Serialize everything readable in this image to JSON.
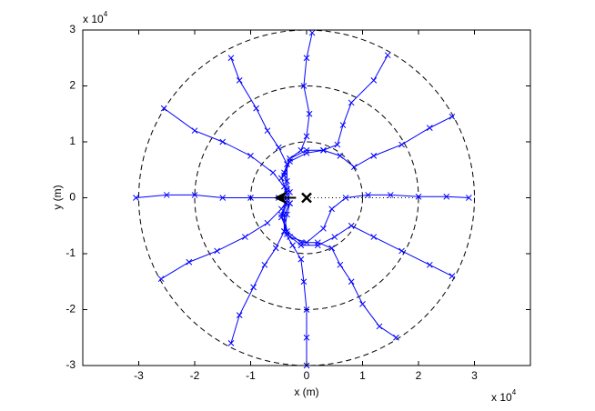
{
  "chart_data": {
    "type": "line",
    "xlabel": "x (m)",
    "ylabel": "y (m)",
    "x_multiplier": {
      "base": "x 10",
      "exponent": "4"
    },
    "y_multiplier": {
      "base": "x 10",
      "exponent": "4"
    },
    "xlim": [
      -4,
      4
    ],
    "ylim": [
      -3,
      3
    ],
    "xticks": [
      -3,
      -2,
      -1,
      0,
      1,
      2,
      3
    ],
    "yticks": [
      -3,
      -2,
      -1,
      0,
      1,
      2,
      3
    ],
    "reference_circles": {
      "radii": [
        1,
        2,
        3
      ],
      "color": "#000000"
    },
    "reference_line": {
      "x": [
        0,
        1.9
      ],
      "y": [
        0,
        0
      ],
      "color": "#000000"
    },
    "start_point": {
      "x": 0,
      "y": 0,
      "color": "#000000"
    },
    "arrow": {
      "x": -0.45,
      "y": 0,
      "color": "#000000"
    },
    "marker": "x",
    "series": [
      {
        "color": "#0000ff",
        "x": [
          -3.05,
          -2.5,
          -2,
          -1.5,
          -1,
          -0.5,
          -0.35
        ],
        "y": [
          0,
          0.05,
          0.05,
          0,
          0,
          0,
          0
        ]
      },
      {
        "color": "#0000ff",
        "x": [
          -2.55,
          -2,
          -1.5,
          -1,
          -0.6,
          -0.4,
          -0.35
        ],
        "y": [
          1.6,
          1.2,
          1,
          0.75,
          0.45,
          0.2,
          0.05
        ]
      },
      {
        "color": "#0000ff",
        "x": [
          -1.35,
          -1.2,
          -0.9,
          -0.7,
          -0.5,
          -0.35,
          -0.35,
          -0.3
        ],
        "y": [
          2.5,
          2.1,
          1.6,
          1.2,
          0.9,
          0.6,
          0.3,
          0.1
        ]
      },
      {
        "color": "#0000ff",
        "x": [
          0.1,
          0,
          -0.05,
          0.05,
          0,
          -0.1,
          -0.3,
          -0.4,
          -0.35
        ],
        "y": [
          2.95,
          2.5,
          2,
          1.5,
          1.1,
          0.85,
          0.7,
          0.45,
          0.15
        ]
      },
      {
        "color": "#0000ff",
        "x": [
          1.45,
          1.2,
          0.8,
          0.65,
          0.55,
          0.3,
          0,
          -0.3,
          -0.4
        ],
        "y": [
          2.55,
          2.1,
          1.7,
          1.3,
          0.95,
          0.85,
          0.8,
          0.65,
          0.4
        ]
      },
      {
        "color": "#0000ff",
        "x": [
          2.6,
          2.2,
          1.7,
          1.2,
          0.85,
          0.6,
          0.3,
          0,
          -0.3,
          -0.45,
          -0.35
        ],
        "y": [
          1.45,
          1.25,
          0.95,
          0.75,
          0.55,
          0.75,
          0.85,
          0.85,
          0.7,
          0.35,
          0.1
        ]
      },
      {
        "color": "#0000ff",
        "x": [
          2.9,
          2.5,
          2,
          1.5,
          1.1,
          0.7,
          0.45,
          0.3,
          0,
          -0.3,
          -0.45,
          -0.35
        ],
        "y": [
          0,
          0.02,
          0.02,
          0.05,
          0.05,
          0,
          -0.2,
          -0.55,
          -0.8,
          -0.7,
          -0.35,
          -0.1
        ]
      },
      {
        "color": "#0000ff",
        "x": [
          2.6,
          2.2,
          1.7,
          1.2,
          0.8,
          0.5,
          0.2,
          -0.1,
          -0.35,
          -0.45,
          -0.35
        ],
        "y": [
          -1.4,
          -1.2,
          -0.95,
          -0.7,
          -0.5,
          -0.7,
          -0.85,
          -0.85,
          -0.65,
          -0.3,
          -0.05
        ]
      },
      {
        "color": "#0000ff",
        "x": [
          1.6,
          1.3,
          1,
          0.8,
          0.6,
          0.45,
          0.2,
          -0.1,
          -0.35,
          -0.4
        ],
        "y": [
          -2.5,
          -2.3,
          -1.9,
          -1.5,
          -1.2,
          -0.9,
          -0.8,
          -0.8,
          -0.6,
          -0.3
        ]
      },
      {
        "color": "#0000ff",
        "x": [
          0,
          0,
          0,
          -0.05,
          -0.1,
          -0.25,
          -0.4,
          -0.4,
          -0.3
        ],
        "y": [
          -3,
          -2.5,
          -2,
          -1.5,
          -1.1,
          -0.85,
          -0.6,
          -0.3,
          -0.1
        ]
      },
      {
        "color": "#0000ff",
        "x": [
          -1.35,
          -1.2,
          -0.95,
          -0.75,
          -0.55,
          -0.4,
          -0.35,
          -0.3
        ],
        "y": [
          -2.6,
          -2.1,
          -1.6,
          -1.2,
          -0.9,
          -0.6,
          -0.3,
          -0.1
        ]
      },
      {
        "color": "#0000ff",
        "x": [
          -2.6,
          -2.1,
          -1.6,
          -1.1,
          -0.7,
          -0.45,
          -0.35
        ],
        "y": [
          -1.45,
          -1.15,
          -0.95,
          -0.7,
          -0.45,
          -0.2,
          -0.05
        ]
      }
    ]
  }
}
